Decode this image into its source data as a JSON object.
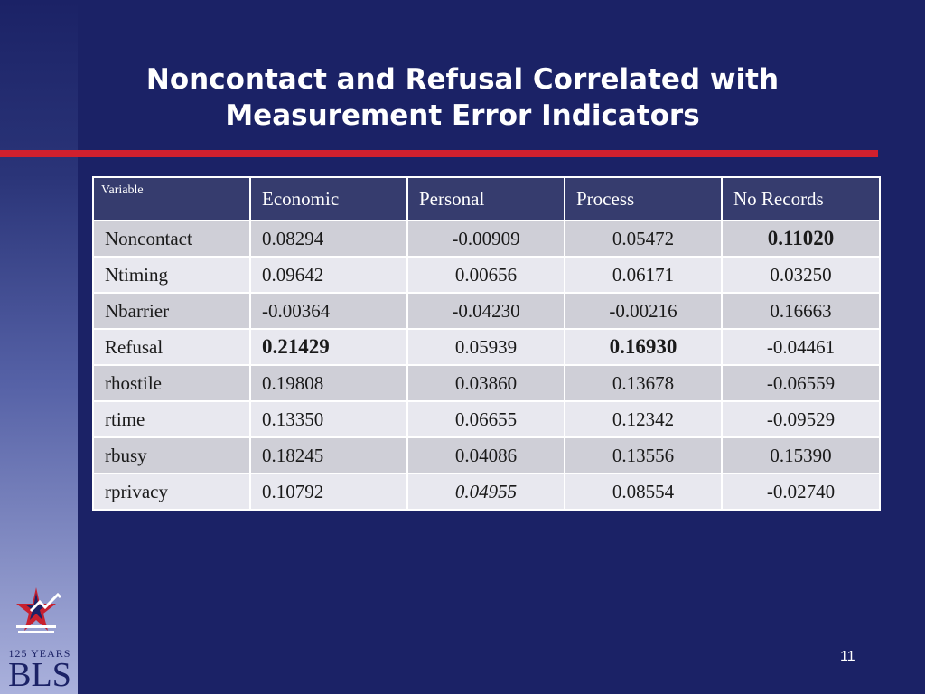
{
  "slide": {
    "title_line1": "Noncontact and Refusal Correlated with",
    "title_line2": "Measurement Error Indicators",
    "page_number": "11"
  },
  "table": {
    "headers": [
      "Variable",
      "Economic",
      "Personal",
      "Process",
      "No Records"
    ],
    "rows": [
      [
        "Noncontact",
        "0.08294",
        "-0.00909",
        "0.05472",
        "0.11020"
      ],
      [
        "Ntiming",
        "0.09642",
        "0.00656",
        "0.06171",
        "0.03250"
      ],
      [
        "Nbarrier",
        "-0.00364",
        "-0.04230",
        "-0.00216",
        "0.16663"
      ],
      [
        "Refusal",
        "0.21429",
        "0.05939",
        "0.16930",
        "-0.04461"
      ],
      [
        "rhostile",
        "0.19808",
        "0.03860",
        "0.13678",
        "-0.06559"
      ],
      [
        "rtime",
        "0.13350",
        "0.06655",
        "0.12342",
        "-0.09529"
      ],
      [
        "rbusy",
        "0.18245",
        "0.04086",
        "0.13556",
        "0.15390"
      ],
      [
        "rprivacy",
        "0.10792",
        "0.04955",
        "0.08554",
        "-0.02740"
      ]
    ],
    "bold_cells": [
      "0.4",
      "3.1",
      "3.3"
    ],
    "italic_cells": [
      "7.2"
    ]
  },
  "logo": {
    "years_text": "125 YEARS",
    "name_text": "BLS"
  },
  "colors": {
    "background": "#1b2266",
    "accent_rule": "#d0202e",
    "header_fill": "#363c6e",
    "row_dark": "#cfcfd7",
    "row_light": "#e8e8ef"
  }
}
